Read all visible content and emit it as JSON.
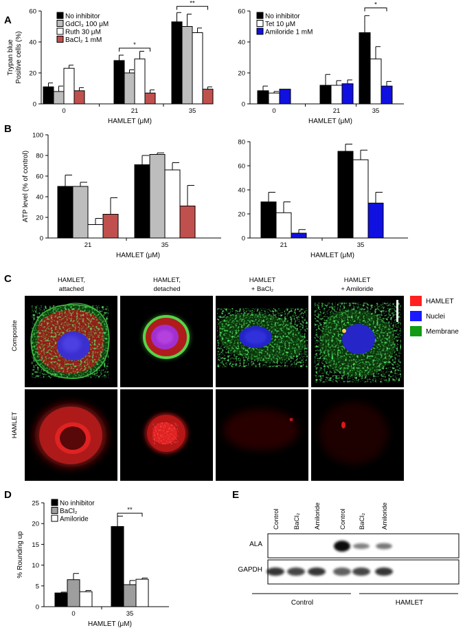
{
  "panel_labels": [
    "A",
    "B",
    "C",
    "D",
    "E"
  ],
  "colors": {
    "no_inhibitor": "#000000",
    "gdcl3": "#bdbdbd",
    "ruth": "#ffffff",
    "bacl2": "#c0504d",
    "amiloride": "#1010e0",
    "grey": "#9e9e9e"
  },
  "chart_data": [
    {
      "id": "A-left",
      "type": "bar",
      "ylabel_lines": [
        "Trypan blue",
        "Positive cells (%)"
      ],
      "xlabel": "HAMLET (μM)",
      "ylim": [
        0,
        60
      ],
      "yticks": [
        "0",
        "20",
        "40",
        "60"
      ],
      "categories": [
        "0",
        "21",
        "35"
      ],
      "legend": "top-left",
      "series": [
        {
          "name": "No inhibitor",
          "color": "#000000",
          "values": [
            11,
            28,
            53
          ],
          "errors": [
            2.5,
            3.5,
            6
          ]
        },
        {
          "name": "GdCl₃ 100 μM",
          "color": "#bdbdbd",
          "values": [
            8,
            20,
            50
          ],
          "errors": [
            3.5,
            2,
            8
          ]
        },
        {
          "name": "Ruth 30 μM",
          "color": "#ffffff",
          "values": [
            23,
            29,
            46
          ],
          "errors": [
            2,
            5,
            3
          ]
        },
        {
          "name": "BaCl₂ 1 mM",
          "color": "#c0504d",
          "values": [
            8.5,
            7,
            9.5
          ],
          "errors": [
            2,
            2,
            1.5
          ]
        }
      ],
      "significance": [
        {
          "label": "*",
          "from": "21-0",
          "to": "21-3",
          "y": 36
        },
        {
          "label": "**",
          "from": "35-0",
          "to": "35-3",
          "y": 63
        }
      ]
    },
    {
      "id": "A-right",
      "type": "bar",
      "xlabel": "HAMLET (μM)",
      "ylim": [
        0,
        60
      ],
      "yticks": [
        "0",
        "20",
        "40",
        "60"
      ],
      "categories": [
        "0",
        "21",
        "35"
      ],
      "legend": "top-left",
      "series": [
        {
          "name": "No inhibitor",
          "color": "#000000",
          "values": [
            8.5,
            12,
            46
          ],
          "errors": [
            3,
            7,
            11
          ]
        },
        {
          "name": "Tet 10 μM",
          "color": "#ffffff",
          "values": [
            7,
            12,
            29
          ],
          "errors": [
            1,
            3,
            8
          ]
        },
        {
          "name": "Amiloride 1 mM",
          "color": "#1010e0",
          "values": [
            9.5,
            13,
            11.5
          ],
          "errors": [
            0,
            2.5,
            3
          ]
        }
      ],
      "significance": [
        {
          "label": "*",
          "from": "35-0",
          "to": "35-2",
          "y": 62
        }
      ]
    },
    {
      "id": "B-left",
      "type": "bar",
      "ylabel": "ATP level (% of control)",
      "xlabel": "HAMLET (μM)",
      "ylim": [
        0,
        100
      ],
      "yticks": [
        "0",
        "20",
        "40",
        "60",
        "80",
        "100"
      ],
      "categories": [
        "21",
        "35"
      ],
      "series": [
        {
          "name": "No inhibitor",
          "color": "#000000",
          "values": [
            50,
            71
          ],
          "errors": [
            11,
            9
          ]
        },
        {
          "name": "GdCl₃ 100 μM",
          "color": "#bdbdbd",
          "values": [
            50,
            81
          ],
          "errors": [
            4,
            1.5
          ]
        },
        {
          "name": "Ruth 30 μM",
          "color": "#ffffff",
          "values": [
            13,
            66
          ],
          "errors": [
            6,
            7
          ]
        },
        {
          "name": "BaCl₂ 1 mM",
          "color": "#c0504d",
          "values": [
            23,
            31
          ],
          "errors": [
            16,
            20
          ]
        }
      ]
    },
    {
      "id": "B-right",
      "type": "bar",
      "xlabel": "HAMLET (μM)",
      "ylim": [
        0,
        80
      ],
      "yticks": [
        "0",
        "20",
        "40",
        "60",
        "80"
      ],
      "categories": [
        "21",
        "35"
      ],
      "series": [
        {
          "name": "No inhibitor",
          "color": "#000000",
          "values": [
            30,
            72
          ],
          "errors": [
            8,
            6
          ]
        },
        {
          "name": "Tet 10 μM",
          "color": "#ffffff",
          "values": [
            21,
            65
          ],
          "errors": [
            9,
            8
          ]
        },
        {
          "name": "Amiloride 1 mM",
          "color": "#1010e0",
          "values": [
            4,
            29
          ],
          "errors": [
            3,
            9
          ]
        }
      ]
    },
    {
      "id": "D",
      "type": "bar",
      "ylabel": "% Rounding up",
      "xlabel": "HAMLET (μM)",
      "ylim": [
        0,
        25
      ],
      "yticks": [
        "0",
        "5",
        "10",
        "15",
        "20",
        "25"
      ],
      "categories": [
        "0",
        "35"
      ],
      "legend": "top-left",
      "series": [
        {
          "name": "No inhibitor",
          "color": "#000000",
          "values": [
            3.3,
            19.3
          ],
          "errors": [
            0.2,
            2.5
          ]
        },
        {
          "name": "BaCl₂",
          "color": "#9e9e9e",
          "values": [
            6.5,
            5.3
          ],
          "errors": [
            1.5,
            1
          ]
        },
        {
          "name": "Amiloride",
          "color": "#ffffff",
          "values": [
            3.6,
            6.6
          ],
          "errors": [
            0.3,
            0.3
          ]
        }
      ],
      "significance": [
        {
          "label": "**",
          "from": "35-0",
          "to": "35-2",
          "y": 22.5
        }
      ]
    }
  ],
  "panel_c": {
    "column_titles": [
      [
        "HAMLET,",
        "attached"
      ],
      [
        "HAMLET,",
        "detached"
      ],
      [
        "HAMLET",
        "+ BaCl₂"
      ],
      [
        "HAMLET",
        "+ Amiloride"
      ]
    ],
    "row_labels": [
      "Composite",
      "HAMLET"
    ],
    "legend": [
      {
        "label": "HAMLET",
        "color": "#ff2020"
      },
      {
        "label": "Nuclei",
        "color": "#1a1aff"
      },
      {
        "label": "Membrane",
        "color": "#139a13"
      }
    ]
  },
  "panel_e": {
    "lane_labels": [
      "Control",
      "BaCl₂",
      "Amiloride",
      "Control",
      "BaCl₂",
      "Amiloride"
    ],
    "rows": [
      "ALA",
      "GAPDH"
    ],
    "ala_intensity": [
      0,
      0,
      0,
      1.0,
      0.35,
      0.4
    ],
    "gapdh_intensity": [
      0.85,
      0.75,
      0.85,
      0.6,
      0.75,
      0.85
    ],
    "groups": [
      "Control",
      "HAMLET"
    ]
  }
}
